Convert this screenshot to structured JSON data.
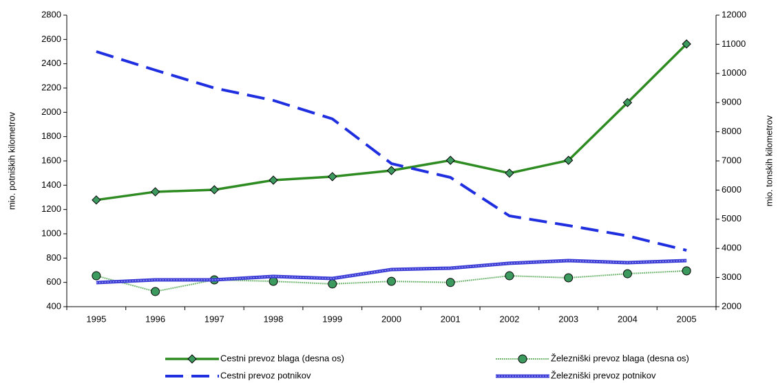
{
  "chart_data": {
    "type": "line",
    "categories": [
      "1995",
      "1996",
      "1997",
      "1998",
      "1999",
      "2000",
      "2001",
      "2002",
      "2003",
      "2004",
      "2005"
    ],
    "ylabel": "mio. potniških kilometrov",
    "y2label": "mio. tonskih kilometrov",
    "ylim": [
      400,
      2800
    ],
    "yticks": [
      400,
      600,
      800,
      1000,
      1200,
      1400,
      1600,
      1800,
      2000,
      2200,
      2400,
      2600,
      2800
    ],
    "y2lim": [
      2000,
      12000
    ],
    "y2ticks": [
      2000,
      3000,
      4000,
      5000,
      6000,
      7000,
      8000,
      9000,
      10000,
      11000,
      12000
    ],
    "legend": "bottom",
    "series": [
      {
        "name": "Cestni prevoz blaga (desna os)",
        "color": "#2e8b22",
        "axis": "y2",
        "line_style": "solid",
        "marker": "diamond",
        "values": [
          5660,
          5940,
          6010,
          6340,
          6460,
          6670,
          7020,
          6580,
          7020,
          9000,
          11010
        ]
      },
      {
        "name": "Železniški prevoz blaga (desna os)",
        "color": "#6fb56f",
        "axis": "y2",
        "line_style": "dotted",
        "marker": "circle",
        "values": [
          3060,
          2520,
          2920,
          2870,
          2780,
          2870,
          2830,
          3060,
          2990,
          3130,
          3230
        ]
      },
      {
        "name": "Cestni prevoz potnikov",
        "color": "#1f2fe0",
        "line_style": "dashed",
        "values": [
          2500,
          2347,
          2200,
          2098,
          1946,
          1578,
          1464,
          1147,
          1068,
          983,
          864
        ]
      },
      {
        "name": "Železniški prevoz potnikov",
        "color": "#3b3bd6",
        "line_style": "double",
        "values": [
          598,
          621,
          621,
          649,
          632,
          706,
          717,
          757,
          779,
          762,
          779
        ]
      }
    ]
  }
}
